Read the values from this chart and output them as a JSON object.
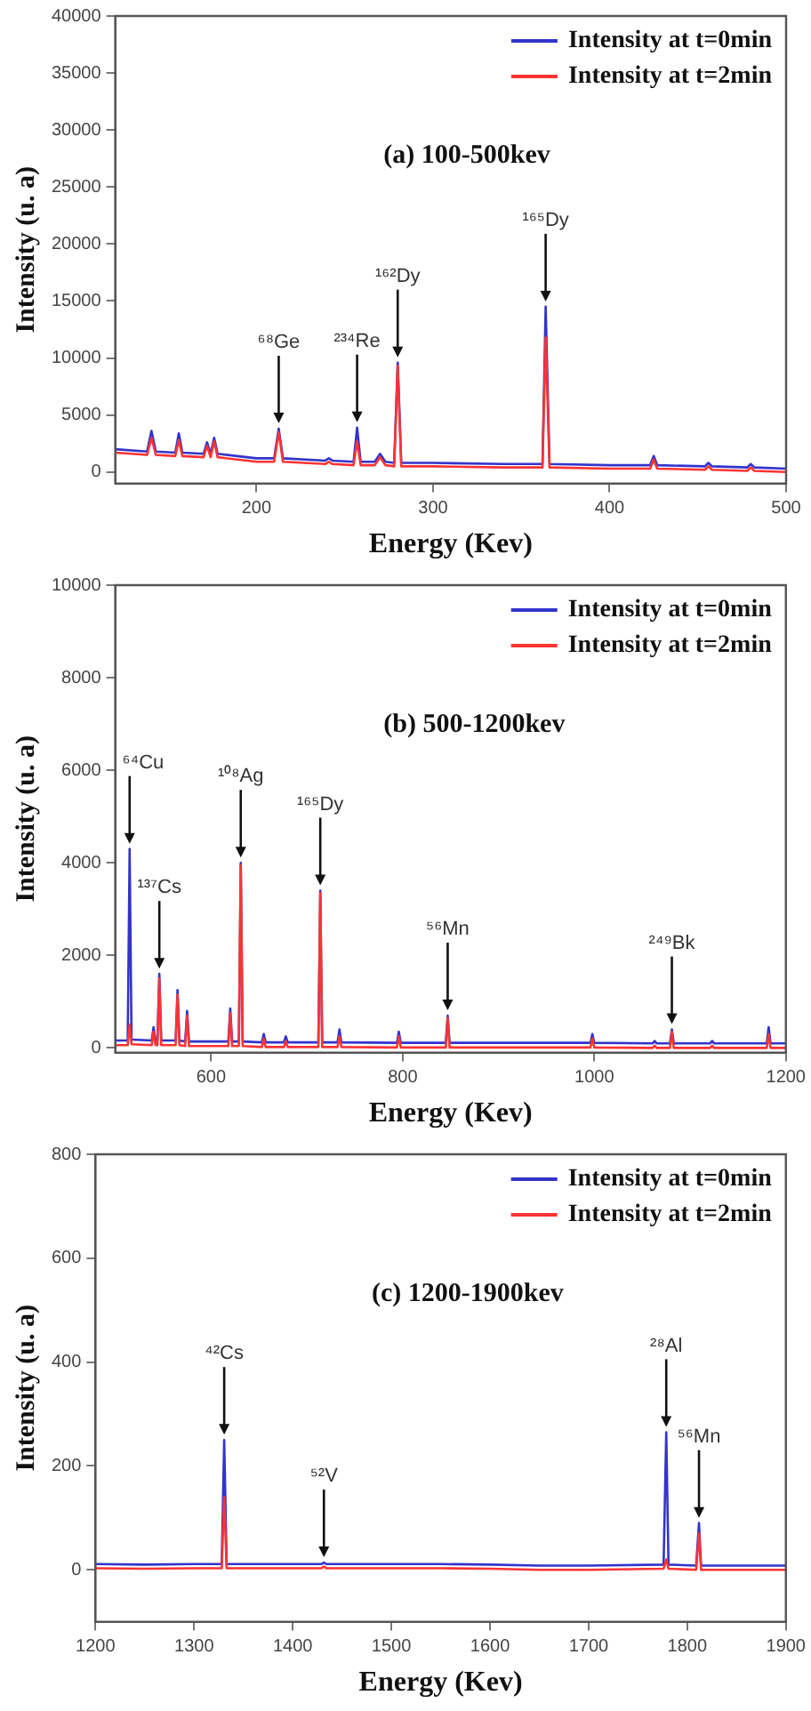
{
  "chart_data": [
    {
      "type": "line",
      "xlabel": "Energy (Kev)",
      "ylabel": "Intensity (u. a)",
      "xlim": [
        120,
        500
      ],
      "xticks": [
        200,
        300,
        400,
        500
      ],
      "ylim": [
        -1000,
        40000
      ],
      "yticks": [
        0,
        5000,
        10000,
        15000,
        20000,
        25000,
        30000,
        35000,
        40000
      ],
      "legend": "top right",
      "x": [
        120,
        138,
        140.5,
        143,
        154,
        156,
        158,
        170,
        172,
        174,
        176,
        178,
        200,
        210,
        212.6,
        215,
        239,
        241,
        243,
        255,
        257,
        259,
        267,
        270,
        273,
        278,
        280,
        282,
        300,
        340,
        362,
        363.8,
        366,
        400,
        423,
        425,
        427,
        454,
        456,
        458,
        478,
        480,
        482,
        500
      ],
      "series": [
        {
          "name": "Intensity at t=0min",
          "color": "#3333cc",
          "values": [
            2000,
            1800,
            3600,
            1800,
            1700,
            3400,
            1700,
            1600,
            2600,
            1600,
            3000,
            1600,
            1200,
            1200,
            3800,
            1200,
            1000,
            1200,
            1000,
            900,
            3900,
            900,
            900,
            1600,
            900,
            800,
            9600,
            800,
            800,
            700,
            700,
            14500,
            700,
            600,
            600,
            1400,
            600,
            500,
            800,
            500,
            400,
            700,
            400,
            300
          ]
        },
        {
          "name": "Intensity at t=2min",
          "color": "#ff3333",
          "values": [
            1700,
            1500,
            3000,
            1500,
            1400,
            2800,
            1400,
            1300,
            2300,
            1300,
            2700,
            1300,
            900,
            900,
            3500,
            900,
            700,
            900,
            700,
            600,
            2700,
            600,
            600,
            1300,
            600,
            500,
            9300,
            500,
            500,
            400,
            400,
            11800,
            400,
            300,
            300,
            1100,
            300,
            200,
            500,
            200,
            100,
            400,
            100,
            0
          ]
        }
      ],
      "annotations": [
        "(a) 100-500kev",
        {
          "text": "⁶⁸Ge",
          "x": 212.6,
          "y": 3800
        },
        {
          "text": "²³⁴Re",
          "x": 257,
          "y": 3900
        },
        {
          "text": "¹⁶²Dy",
          "x": 280,
          "y": 9600
        },
        {
          "text": "¹⁶⁵Dy",
          "x": 363.8,
          "y": 14500
        }
      ]
    },
    {
      "type": "line",
      "xlabel": "Energy (Kev)",
      "ylabel": "Intensity (u. a)",
      "xlim": [
        500,
        1200
      ],
      "xticks": [
        600,
        800,
        1000,
        1200
      ],
      "ylim": [
        -100,
        10000
      ],
      "yticks": [
        0,
        2000,
        4000,
        6000,
        8000,
        10000
      ],
      "legend": "top right",
      "x": [
        500,
        513,
        515,
        517,
        538,
        540,
        542,
        544,
        546,
        548,
        563,
        565,
        567,
        573,
        575,
        577,
        618,
        620,
        622,
        629,
        631,
        633,
        653,
        655,
        657,
        676,
        678,
        680,
        712,
        714,
        716,
        732,
        734,
        736,
        794,
        796,
        798,
        845,
        847,
        849,
        996,
        998,
        1000,
        1061,
        1063,
        1065,
        1079,
        1081,
        1083,
        1121,
        1123,
        1125,
        1180,
        1182,
        1184,
        1200
      ],
      "series": [
        {
          "name": "Intensity at t=0min",
          "color": "#3333cc",
          "values": [
            160,
            160,
            4300,
            180,
            160,
            450,
            160,
            160,
            1600,
            160,
            160,
            1250,
            160,
            140,
            800,
            140,
            140,
            850,
            140,
            140,
            4000,
            140,
            120,
            300,
            120,
            120,
            250,
            120,
            120,
            3400,
            120,
            120,
            400,
            120,
            110,
            350,
            110,
            110,
            700,
            110,
            110,
            300,
            110,
            100,
            150,
            100,
            100,
            400,
            100,
            100,
            150,
            100,
            100,
            450,
            100,
            100
          ]
        },
        {
          "name": "Intensity at t=2min",
          "color": "#ff3333",
          "values": [
            60,
            60,
            500,
            80,
            60,
            350,
            60,
            60,
            1500,
            60,
            60,
            1150,
            60,
            40,
            700,
            40,
            40,
            750,
            40,
            40,
            3950,
            40,
            20,
            200,
            20,
            20,
            150,
            20,
            20,
            3350,
            20,
            20,
            250,
            20,
            10,
            250,
            10,
            10,
            650,
            10,
            10,
            200,
            10,
            0,
            50,
            0,
            0,
            350,
            0,
            0,
            50,
            0,
            0,
            300,
            0,
            0
          ]
        }
      ],
      "annotations": [
        "(b) 500-1200kev",
        {
          "text": "⁶⁴Cu",
          "x": 515,
          "y": 4300
        },
        {
          "text": "¹³⁷Cs",
          "x": 546,
          "y": 1600
        },
        {
          "text": "¹⁰⁸Ag",
          "x": 631,
          "y": 4000
        },
        {
          "text": "¹⁶⁵Dy",
          "x": 714,
          "y": 3400
        },
        {
          "text": "⁵⁶Mn",
          "x": 847,
          "y": 700
        },
        {
          "text": "²⁴⁹Bk",
          "x": 1081,
          "y": 400
        }
      ]
    },
    {
      "type": "line",
      "xlabel": "Energy (Kev)",
      "ylabel": "Intensity (u. a)",
      "xlim": [
        1200,
        1900
      ],
      "xticks": [
        1200,
        1300,
        1400,
        1500,
        1600,
        1700,
        1800,
        1900
      ],
      "ylim": [
        -100,
        800
      ],
      "yticks": [
        0,
        200,
        400,
        600,
        800
      ],
      "legend": "top right",
      "x": [
        1200,
        1250,
        1300,
        1328,
        1330.5,
        1333,
        1380,
        1429,
        1431.6,
        1434,
        1500,
        1550,
        1600,
        1650,
        1700,
        1776,
        1778.7,
        1781,
        1809,
        1811.9,
        1814,
        1850,
        1900
      ],
      "series": [
        {
          "name": "Intensity at t=0min",
          "color": "#3333cc",
          "values": [
            11,
            10,
            11,
            11,
            250,
            11,
            11,
            11,
            14,
            11,
            11,
            11,
            10,
            8,
            8,
            10,
            265,
            10,
            8,
            90,
            8,
            8,
            8
          ]
        },
        {
          "name": "Intensity at t=2min",
          "color": "#ff3333",
          "values": [
            3,
            2,
            3,
            3,
            140,
            3,
            3,
            3,
            6,
            3,
            3,
            3,
            2,
            0,
            0,
            2,
            20,
            2,
            0,
            70,
            0,
            0,
            0
          ]
        }
      ],
      "annotations": [
        "(c) 1200-1900kev",
        {
          "text": "⁴²Cs",
          "x": 1330.5,
          "y": 250
        },
        {
          "text": "⁵²V",
          "x": 1431.6,
          "y": 14
        },
        {
          "text": "²⁸Al",
          "x": 1778.7,
          "y": 265
        },
        {
          "text": "⁵⁶Mn",
          "x": 1811.9,
          "y": 90
        }
      ]
    }
  ]
}
